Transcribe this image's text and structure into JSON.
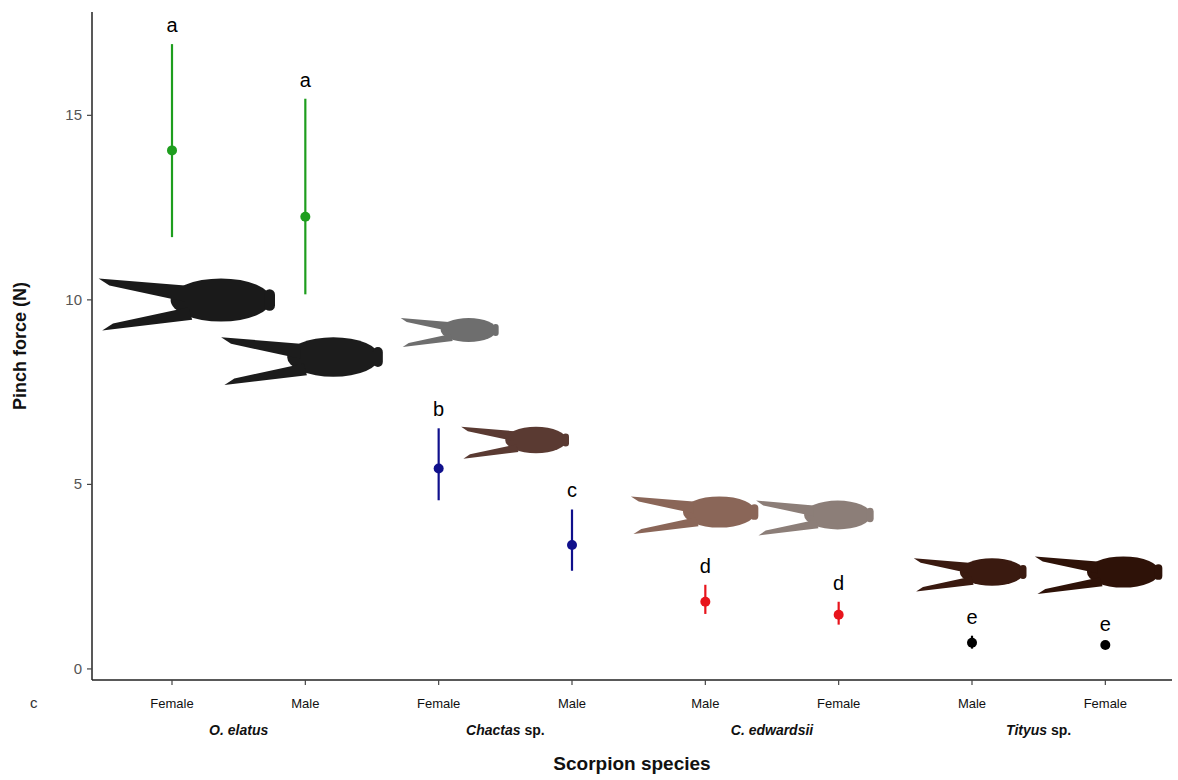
{
  "chart_data": {
    "type": "scatter",
    "panel_label": "c",
    "x_label": "Scorpion species",
    "y_label": "Pinch force (N)",
    "categories": [
      "Female",
      "Male",
      "Female",
      "Male",
      "Male",
      "Female",
      "Male",
      "Female"
    ],
    "groups": [
      {
        "label": "O. elatus",
        "categories": [
          0,
          1
        ]
      },
      {
        "label": "Chactas sp.",
        "categories": [
          2,
          3
        ]
      },
      {
        "label": "C. edwardsii",
        "categories": [
          4,
          5
        ]
      },
      {
        "label": "Tityus sp.",
        "categories": [
          6,
          7
        ]
      }
    ],
    "series": [
      {
        "values": [
          14.05,
          12.25,
          5.43,
          3.36,
          1.82,
          1.47,
          0.71,
          0.65
        ],
        "lower": [
          11.7,
          10.15,
          4.57,
          2.66,
          1.49,
          1.2,
          0.55,
          0.6
        ],
        "upper": [
          16.93,
          15.45,
          6.52,
          4.32,
          2.28,
          1.82,
          0.9,
          0.7
        ],
        "colors": [
          "#1e9e1e",
          "#1e9e1e",
          "#10108c",
          "#10108c",
          "#e8141c",
          "#e8141c",
          "#000000",
          "#000000"
        ],
        "letters": [
          "a",
          "a",
          "b",
          "c",
          "d",
          "d",
          "e",
          "e"
        ],
        "marker": "circle"
      }
    ],
    "ylim": [
      -0.3,
      17.8
    ],
    "yticks": [
      0,
      5,
      10,
      15
    ],
    "grid": false
  }
}
